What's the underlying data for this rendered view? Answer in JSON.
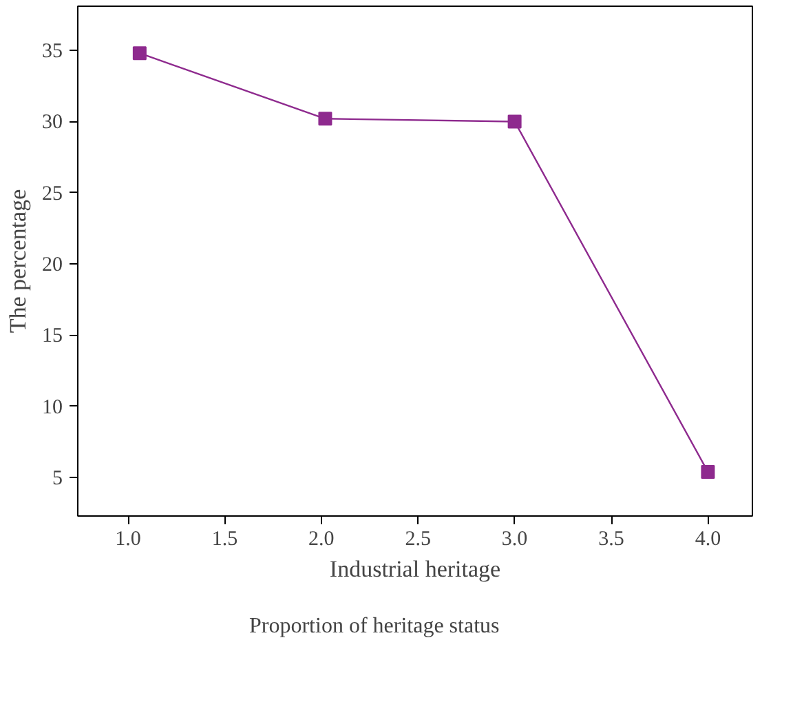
{
  "chart_data": {
    "type": "line",
    "xlabel": "Industrial heritage",
    "ylabel": "The percentage",
    "x": [
      1.06,
      2.02,
      3.0,
      4.0
    ],
    "series": [
      {
        "name": "Proportion of heritage status",
        "color": "#8e2a8e",
        "values": [
          34.8,
          30.2,
          30.0,
          5.4
        ]
      }
    ],
    "xlim": [
      0.74,
      4.23
    ],
    "ylim": [
      2.3,
      38.1
    ],
    "xticks": [
      {
        "value": 1.0,
        "label": "1.0"
      },
      {
        "value": 1.5,
        "label": "1.5"
      },
      {
        "value": 2.0,
        "label": "2.0"
      },
      {
        "value": 2.5,
        "label": "2.5"
      },
      {
        "value": 3.0,
        "label": "3.0"
      },
      {
        "value": 3.5,
        "label": "3.5"
      },
      {
        "value": 4.0,
        "label": "4.0"
      }
    ],
    "yticks": [
      5,
      10,
      15,
      20,
      25,
      30,
      35
    ],
    "marker": "square",
    "line_style": "solid",
    "grid": false,
    "legend": "bottom left"
  }
}
